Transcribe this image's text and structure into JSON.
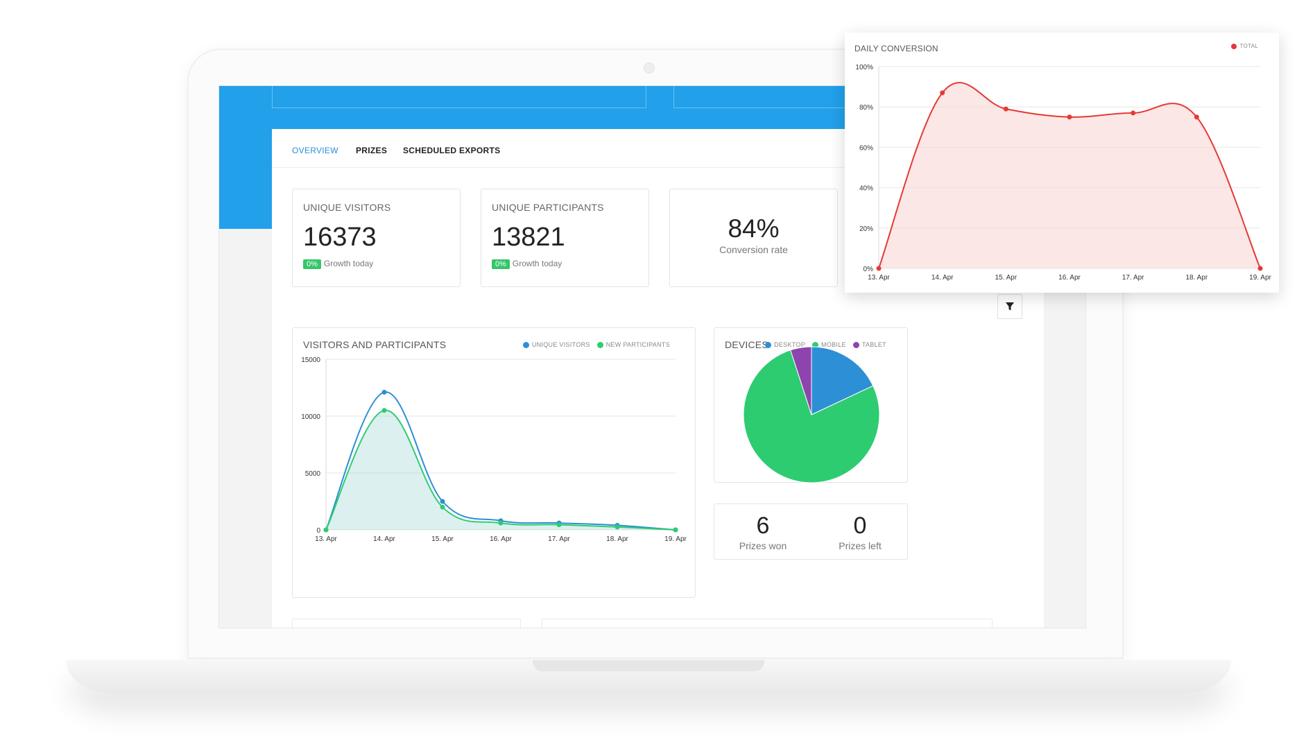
{
  "tabs": [
    {
      "label": "OVERVIEW",
      "active": true
    },
    {
      "label": "PRIZES",
      "active": false
    },
    {
      "label": "SCHEDULED EXPORTS",
      "active": false
    }
  ],
  "stats": {
    "unique_visitors": {
      "title": "UNIQUE VISITORS",
      "value": "16373",
      "growth_badge": "0%",
      "growth_text": "Growth today"
    },
    "unique_participants": {
      "title": "UNIQUE PARTICIPANTS",
      "value": "13821",
      "growth_badge": "0%",
      "growth_text": "Growth today"
    },
    "conversion": {
      "value": "84%",
      "label": "Conversion rate"
    }
  },
  "prizes": {
    "won": {
      "value": "6",
      "label": "Prizes won"
    },
    "left": {
      "value": "0",
      "label": "Prizes left"
    }
  },
  "icons": {
    "filter": "filter-icon"
  },
  "colors": {
    "brand_blue": "#22a0ea",
    "tab_active": "#2a8ed8",
    "visitors": "#2d8fd5",
    "participants": "#2ecc71",
    "tablet": "#8e44ad",
    "conversion": "#e53935",
    "badge_green": "#35c56a"
  },
  "chart_data": [
    {
      "id": "visitors",
      "type": "area",
      "title": "VISITORS AND PARTICIPANTS",
      "x": [
        "13. Apr",
        "14. Apr",
        "15. Apr",
        "16. Apr",
        "17. Apr",
        "18. Apr",
        "19. Apr"
      ],
      "yticks": [
        "0",
        "5000",
        "10000",
        "15000"
      ],
      "ylim": [
        0,
        15000
      ],
      "grid": true,
      "legend": "top-right",
      "series": [
        {
          "name": "UNIQUE VISITORS",
          "color": "#2d8fd5",
          "values": [
            0,
            12100,
            2500,
            800,
            600,
            400,
            0
          ]
        },
        {
          "name": "NEW PARTICIPANTS",
          "color": "#2ecc71",
          "values": [
            0,
            10500,
            2000,
            600,
            450,
            250,
            0
          ]
        }
      ]
    },
    {
      "id": "devices",
      "type": "pie",
      "title": "DEVICES",
      "legend": "top-right",
      "series": [
        {
          "name": "DESKTOP",
          "color": "#2d8fd5",
          "value": 18
        },
        {
          "name": "MOBILE",
          "color": "#2ecc71",
          "value": 77
        },
        {
          "name": "TABLET",
          "color": "#8e44ad",
          "value": 5
        }
      ]
    },
    {
      "id": "conversion",
      "type": "area",
      "title": "DAILY CONVERSION",
      "x": [
        "13. Apr",
        "14. Apr",
        "15. Apr",
        "16. Apr",
        "17. Apr",
        "18. Apr",
        "19. Apr"
      ],
      "yticks": [
        "0%",
        "20%",
        "40%",
        "60%",
        "80%",
        "100%"
      ],
      "ylim": [
        0,
        100
      ],
      "grid": true,
      "legend": "top-right",
      "series": [
        {
          "name": "TOTAL",
          "color": "#e53935",
          "values": [
            0,
            87,
            79,
            75,
            77,
            75,
            0
          ]
        }
      ]
    }
  ]
}
